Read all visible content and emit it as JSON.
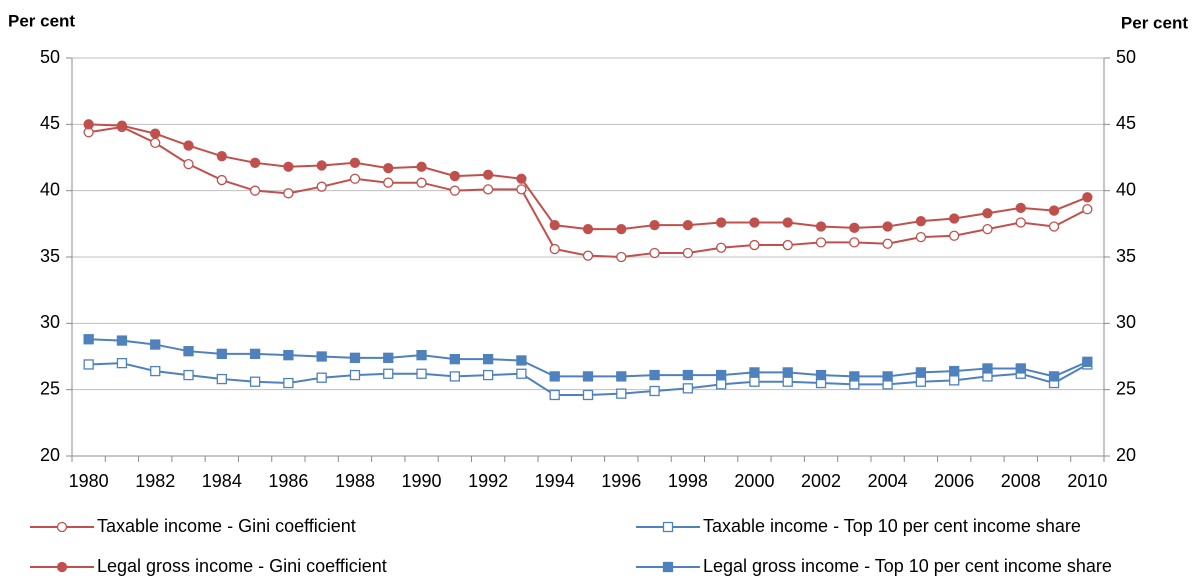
{
  "chart_data": {
    "type": "line",
    "y_label": "Per cent",
    "y2_label": "Per cent",
    "categories": [
      "1980",
      null,
      "1982",
      null,
      "1984",
      null,
      "1986",
      null,
      "1988",
      null,
      "1990",
      null,
      "1992",
      null,
      "1994",
      null,
      "1996",
      null,
      "1998",
      null,
      "2000",
      null,
      "2002",
      null,
      "2004",
      null,
      "2006",
      null,
      "2008",
      null,
      "2010"
    ],
    "ylim": [
      20,
      50
    ],
    "yticks": [
      20,
      25,
      30,
      35,
      40,
      45,
      50
    ],
    "y2lim": [
      20,
      50
    ],
    "y2ticks": [
      20,
      25,
      30,
      35,
      40,
      45,
      50
    ],
    "grid": true,
    "legend": "bottom",
    "series": [
      {
        "name": "Taxable income - Gini coefficient",
        "color": "#c0504d",
        "marker": "circle",
        "filled": false,
        "values": [
          44.4,
          44.8,
          43.6,
          42.0,
          40.8,
          40.0,
          39.8,
          40.3,
          40.9,
          40.6,
          40.6,
          40.0,
          40.1,
          40.1,
          35.6,
          35.1,
          35.0,
          35.3,
          35.3,
          35.7,
          35.9,
          35.9,
          36.1,
          36.1,
          36.0,
          36.5,
          36.6,
          37.1,
          37.6,
          37.3,
          38.6
        ]
      },
      {
        "name": "Taxable income - Top 10 per cent income share",
        "color": "#4f81bd",
        "marker": "square",
        "filled": false,
        "values": [
          26.9,
          27.0,
          26.4,
          26.1,
          25.8,
          25.6,
          25.5,
          25.9,
          26.1,
          26.2,
          26.2,
          26.0,
          26.1,
          26.2,
          24.6,
          24.6,
          24.7,
          24.9,
          25.1,
          25.4,
          25.6,
          25.6,
          25.5,
          25.4,
          25.4,
          25.6,
          25.7,
          26.0,
          26.2,
          25.5,
          26.9
        ]
      },
      {
        "name": "Legal gross income - Gini coefficient",
        "color": "#c0504d",
        "marker": "circle",
        "filled": true,
        "values": [
          45.0,
          44.9,
          44.3,
          43.4,
          42.6,
          42.1,
          41.8,
          41.9,
          42.1,
          41.7,
          41.8,
          41.1,
          41.2,
          40.9,
          37.4,
          37.1,
          37.1,
          37.4,
          37.4,
          37.6,
          37.6,
          37.6,
          37.3,
          37.2,
          37.3,
          37.7,
          37.9,
          38.3,
          38.7,
          38.5,
          39.5
        ]
      },
      {
        "name": "Legal gross income - Top 10 per cent income share",
        "color": "#4f81bd",
        "marker": "square",
        "filled": true,
        "values": [
          28.8,
          28.7,
          28.4,
          27.9,
          27.7,
          27.7,
          27.6,
          27.5,
          27.4,
          27.4,
          27.6,
          27.3,
          27.3,
          27.2,
          26.0,
          26.0,
          26.0,
          26.1,
          26.1,
          26.1,
          26.3,
          26.3,
          26.1,
          26.0,
          26.0,
          26.3,
          26.4,
          26.6,
          26.6,
          26.0,
          27.1
        ]
      }
    ]
  }
}
